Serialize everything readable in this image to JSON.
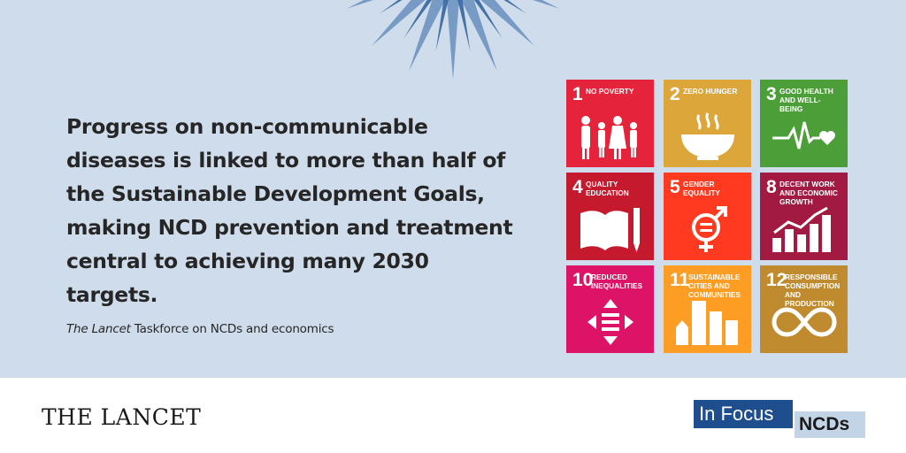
{
  "quote": "Progress on non-communicable diseases is linked to more than half of the Sustainable Development Goals, making NCD prevention and treatment central to achieving many 2030 targets.",
  "attribution": {
    "journal": "The Lancet",
    "rest": " Taskforce on NCDs and economics"
  },
  "brand": "THE LANCET",
  "badge": {
    "main": "In Focus",
    "topic": "NCDs"
  },
  "sdgs": [
    {
      "number": "1",
      "title": "NO POVERTY",
      "color": "#e5243b",
      "icon": "family-icon"
    },
    {
      "number": "2",
      "title": "ZERO HUNGER",
      "color": "#dda63a",
      "icon": "bowl-icon"
    },
    {
      "number": "3",
      "title": "GOOD HEALTH AND WELL-BEING",
      "color": "#4c9f38",
      "icon": "heartbeat-icon"
    },
    {
      "number": "4",
      "title": "QUALITY EDUCATION",
      "color": "#c5192d",
      "icon": "book-pencil-icon"
    },
    {
      "number": "5",
      "title": "GENDER EQUALITY",
      "color": "#ff3a21",
      "icon": "gender-equality-icon"
    },
    {
      "number": "8",
      "title": "DECENT WORK AND ECONOMIC GROWTH",
      "color": "#a21942",
      "icon": "growth-chart-icon"
    },
    {
      "number": "10",
      "title": "REDUCED INEQUALITIES",
      "color": "#dd1367",
      "icon": "equals-arrows-icon"
    },
    {
      "number": "11",
      "title": "SUSTAINABLE CITIES AND COMMUNITIES",
      "color": "#fd9d24",
      "icon": "city-buildings-icon"
    },
    {
      "number": "12",
      "title": "RESPONSIBLE CONSUMPTION AND PRODUCTION",
      "color": "#bf8b2e",
      "icon": "infinity-loop-icon"
    }
  ]
}
